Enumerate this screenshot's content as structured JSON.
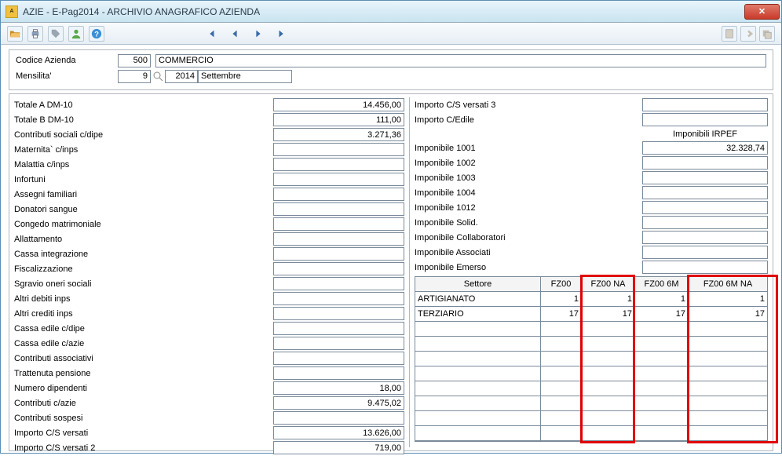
{
  "window": {
    "title": "AZIE  -  E-Pag2014  -   ARCHIVIO ANAGRAFICO AZIENDA"
  },
  "header": {
    "codice_label": "Codice Azienda",
    "codice_value": "500",
    "codice_name": "COMMERCIO",
    "mensilita_label": "Mensilita'",
    "mensilita_value": "9",
    "anno": "2014",
    "mese": "Settembre"
  },
  "left_rows": [
    {
      "label": "Totale A DM-10",
      "value": "14.456,00"
    },
    {
      "label": "Totale B DM-10",
      "value": "111,00"
    },
    {
      "label": "Contributi sociali c/dipe",
      "value": "3.271,36"
    },
    {
      "label": "Maternita` c/inps",
      "value": ""
    },
    {
      "label": "Malattia  c/inps",
      "value": ""
    },
    {
      "label": "Infortuni",
      "value": ""
    },
    {
      "label": "Assegni familiari",
      "value": ""
    },
    {
      "label": "Donatori sangue",
      "value": ""
    },
    {
      "label": "Congedo matrimoniale",
      "value": ""
    },
    {
      "label": "Allattamento",
      "value": ""
    },
    {
      "label": "Cassa integrazione",
      "value": ""
    },
    {
      "label": "Fiscalizzazione",
      "value": ""
    },
    {
      "label": "Sgravio oneri sociali",
      "value": ""
    },
    {
      "label": "Altri debiti inps",
      "value": ""
    },
    {
      "label": "Altri crediti inps",
      "value": ""
    },
    {
      "label": "Cassa edile c/dipe",
      "value": ""
    },
    {
      "label": "Cassa edile c/azie",
      "value": ""
    },
    {
      "label": "Contributi associativi",
      "value": ""
    },
    {
      "label": "Trattenuta pensione",
      "value": ""
    },
    {
      "label": "Numero dipendenti",
      "value": "18,00"
    },
    {
      "label": "Contributi c/azie",
      "value": "9.475,02"
    },
    {
      "label": "Contributi sospesi",
      "value": ""
    },
    {
      "label": "Importo C/S versati",
      "value": "13.626,00"
    },
    {
      "label": "Importo C/S versati  2",
      "value": "719,00"
    }
  ],
  "right_top": [
    {
      "label": "Importo C/S versati  3",
      "value": ""
    },
    {
      "label": "Importo C/Edile",
      "value": ""
    }
  ],
  "right_section_title": "Imponibili IRPEF",
  "right_rows": [
    {
      "label": "Imponibile 1001",
      "value": "32.328,74"
    },
    {
      "label": "Imponibile 1002",
      "value": ""
    },
    {
      "label": "Imponibile 1003",
      "value": ""
    },
    {
      "label": "Imponibile 1004",
      "value": ""
    },
    {
      "label": "Imponibile 1012",
      "value": ""
    },
    {
      "label": "Imponibile Solid.",
      "value": ""
    },
    {
      "label": "Imponibile Collaboratori",
      "value": ""
    },
    {
      "label": "Imponibile Associati",
      "value": ""
    },
    {
      "label": "Imponibile Emerso",
      "value": ""
    }
  ],
  "grid": {
    "headers": [
      "Settore",
      "FZ00",
      "FZ00 NA",
      "FZ00 6M",
      "FZ00 6M NA"
    ],
    "rows": [
      {
        "c0": "ARTIGIANATO",
        "c1": "1",
        "c2": "1",
        "c3": "1",
        "c4": "1"
      },
      {
        "c0": "TERZIARIO",
        "c1": "17",
        "c2": "17",
        "c3": "17",
        "c4": "17"
      },
      {
        "c0": "",
        "c1": "",
        "c2": "",
        "c3": "",
        "c4": ""
      },
      {
        "c0": "",
        "c1": "",
        "c2": "",
        "c3": "",
        "c4": ""
      },
      {
        "c0": "",
        "c1": "",
        "c2": "",
        "c3": "",
        "c4": ""
      },
      {
        "c0": "",
        "c1": "",
        "c2": "",
        "c3": "",
        "c4": ""
      },
      {
        "c0": "",
        "c1": "",
        "c2": "",
        "c3": "",
        "c4": ""
      },
      {
        "c0": "",
        "c1": "",
        "c2": "",
        "c3": "",
        "c4": ""
      },
      {
        "c0": "",
        "c1": "",
        "c2": "",
        "c3": "",
        "c4": ""
      },
      {
        "c0": "",
        "c1": "",
        "c2": "",
        "c3": "",
        "c4": ""
      }
    ]
  },
  "colors": {
    "highlight": "#e00000"
  }
}
